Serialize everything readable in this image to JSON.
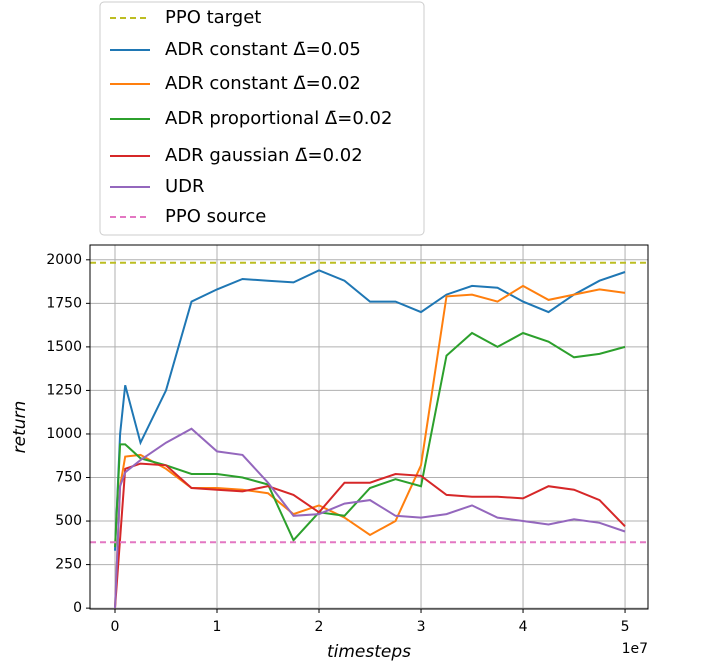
{
  "chart_data": {
    "type": "line",
    "x_label": "timesteps",
    "y_label": "return",
    "x_offset_label": "1e7",
    "x": [
      0,
      0.05,
      0.1,
      0.25,
      0.5,
      0.75,
      1,
      1.25,
      1.5,
      1.75,
      2,
      2.25,
      2.5,
      2.75,
      3,
      3.25,
      3.5,
      3.75,
      4,
      4.25,
      4.5,
      4.75,
      5
    ],
    "xlim": [
      -0.245,
      5.225
    ],
    "xticks": [
      0,
      1,
      2,
      3,
      4,
      5
    ],
    "ylim": [
      -5,
      2085
    ],
    "yticks": [
      0,
      250,
      500,
      750,
      1000,
      1250,
      1500,
      1750,
      2000
    ],
    "grid": true,
    "legend_position": "above",
    "series": [
      {
        "name": "PPO target",
        "color": "#bcbd22",
        "linestyle": "dashed",
        "hline": 1983
      },
      {
        "name": "ADR constant Δ̄=0.05",
        "color": "#1f77b4",
        "values": [
          330,
          1000,
          1280,
          950,
          1250,
          1760,
          1830,
          1890,
          1880,
          1870,
          1940,
          1880,
          1760,
          1760,
          1700,
          1800,
          1850,
          1840,
          1760,
          1700,
          1800,
          1880,
          1930
        ]
      },
      {
        "name": "ADR constant Δ̄=0.02",
        "color": "#ff7f0e",
        "values": [
          0,
          700,
          870,
          880,
          800,
          690,
          690,
          680,
          660,
          540,
          590,
          520,
          420,
          500,
          820,
          1790,
          1800,
          1760,
          1850,
          1770,
          1800,
          1830,
          1810
        ]
      },
      {
        "name": "ADR proportional Δ̄=0.02",
        "color": "#2ca02c",
        "values": [
          350,
          940,
          940,
          860,
          820,
          770,
          770,
          750,
          710,
          390,
          550,
          530,
          690,
          740,
          700,
          1450,
          1580,
          1500,
          1580,
          1530,
          1440,
          1460,
          1500
        ]
      },
      {
        "name": "ADR gaussian Δ̄=0.02",
        "color": "#d62728",
        "values": [
          0,
          400,
          800,
          830,
          820,
          690,
          680,
          670,
          700,
          650,
          550,
          720,
          720,
          770,
          760,
          650,
          640,
          640,
          630,
          700,
          680,
          620,
          470
        ]
      },
      {
        "name": "UDR",
        "color": "#9467bd",
        "values": [
          0,
          700,
          780,
          850,
          950,
          1030,
          900,
          880,
          720,
          530,
          540,
          600,
          620,
          530,
          520,
          540,
          590,
          520,
          500,
          480,
          510,
          490,
          440
        ]
      },
      {
        "name": "PPO source",
        "color": "#e377c2",
        "linestyle": "dashed",
        "hline": 378
      }
    ]
  }
}
